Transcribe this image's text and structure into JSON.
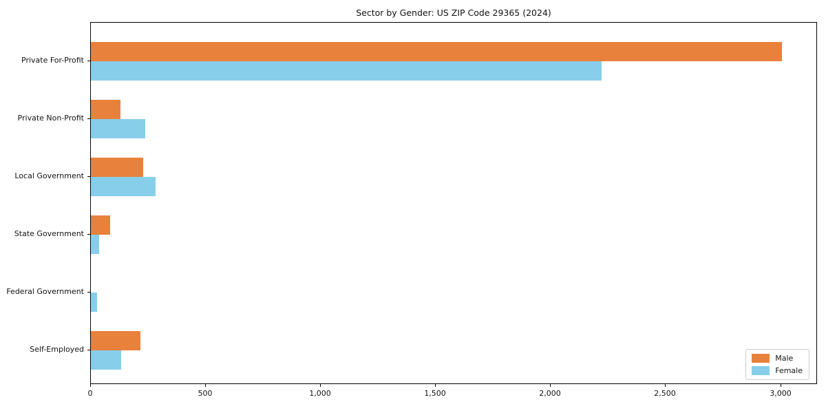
{
  "chart_data": {
    "type": "bar",
    "orientation": "horizontal",
    "title": "Sector by Gender: US ZIP Code 29365 (2024)",
    "categories": [
      "Private For-Profit",
      "Private Non-Profit",
      "Local Government",
      "State Government",
      "Federal Government",
      "Self-Employed"
    ],
    "series": [
      {
        "name": "Male",
        "color": "#e8813c",
        "values": [
          3005,
          128,
          228,
          85,
          0,
          214
        ]
      },
      {
        "name": "Female",
        "color": "#87ceeb",
        "values": [
          2220,
          236,
          281,
          37,
          26,
          132
        ]
      }
    ],
    "xlabel": "",
    "ylabel": "",
    "xlim": [
      0,
      3160
    ],
    "xticks": [
      0,
      500,
      1000,
      1500,
      2000,
      2500,
      3000
    ],
    "xtick_labels": [
      "0",
      "500",
      "1,000",
      "1,500",
      "2,000",
      "2,500",
      "3,000"
    ],
    "legend_position": "lower right",
    "grid": false,
    "frame": true
  }
}
